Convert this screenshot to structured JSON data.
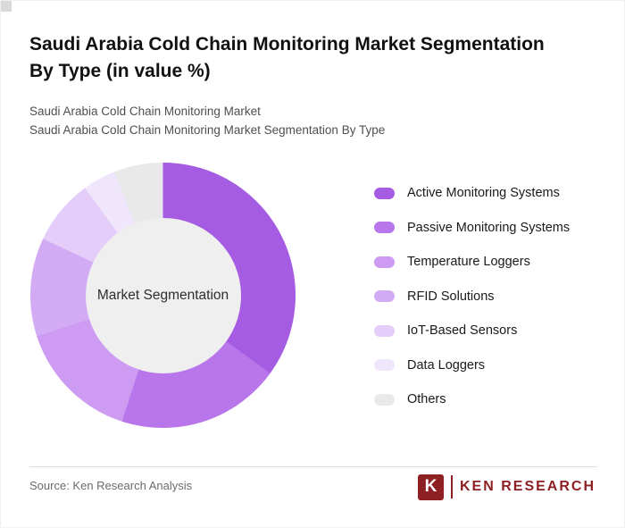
{
  "header": {
    "title": "Saudi Arabia Cold Chain Monitoring Market Segmentation By Type (in value %)",
    "subtitle1": "Saudi Arabia Cold Chain Monitoring Market",
    "subtitle2": "Saudi Arabia Cold Chain Monitoring Market Segmentation By Type"
  },
  "chart_data": {
    "type": "pie",
    "variant": "donut",
    "title": "Saudi Arabia Cold Chain Monitoring Market Segmentation By Type (in value %)",
    "center_label": "Market Segmentation",
    "legend_position": "right",
    "center_fill": "#efefef",
    "segments": [
      {
        "label": "Active Monitoring Systems",
        "value": 35,
        "color": "#a55ce2"
      },
      {
        "label": "Passive Monitoring Systems",
        "value": 20,
        "color": "#b876ea"
      },
      {
        "label": "Temperature Loggers",
        "value": 15,
        "color": "#cd9bf2"
      },
      {
        "label": "RFID Solutions",
        "value": 12,
        "color": "#d3abf4"
      },
      {
        "label": "IoT-Based Sensors",
        "value": 8,
        "color": "#e4cef9"
      },
      {
        "label": "Data Loggers",
        "value": 4,
        "color": "#f0e6fc"
      },
      {
        "label": "Others",
        "value": 6,
        "color": "#e9e9ea"
      }
    ]
  },
  "footer": {
    "source": "Source: Ken Research Analysis",
    "logo_letter": "K",
    "logo_text": "KEN RESEARCH"
  }
}
